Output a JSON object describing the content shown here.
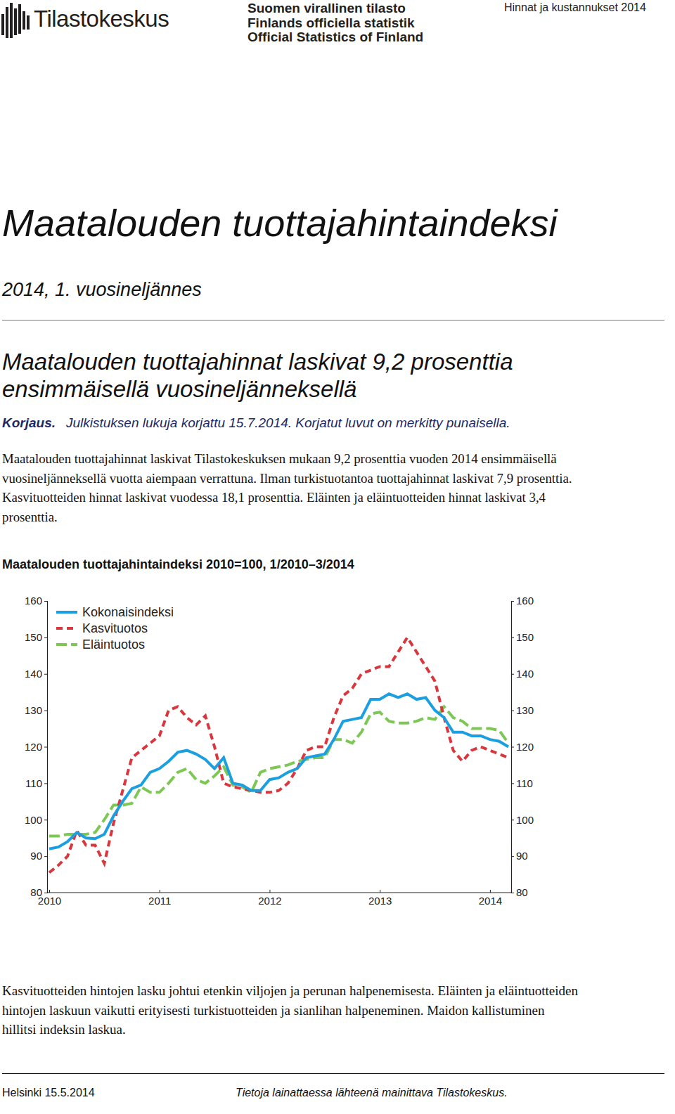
{
  "header": {
    "logo": "Tilastokeskus",
    "official_lines": [
      "Suomen virallinen tilasto",
      "Finlands officiella statistik",
      "Official Statistics of Finland"
    ],
    "top_right": "Hinnat ja kustannukset 2014"
  },
  "document": {
    "title": "Maatalouden tuottajahintaindeksi",
    "subtitle": "2014, 1. vuosineljännes",
    "headline_lines": [
      "Maatalouden tuottajahinnat laskivat 9,2 prosenttia",
      "ensimmäisellä vuosineljänneksellä"
    ],
    "correction_label": "Korjaus.",
    "correction_text": "Julkistuksen lukuja korjattu 15.7.2014. Korjatut luvut on merkitty punaisella.",
    "intro_lines": [
      "Maatalouden tuottajahinnat laskivat Tilastokeskuksen mukaan 9,2 prosenttia vuoden 2014 ensimmäisellä",
      "vuosineljänneksellä vuotta aiempaan verrattuna. Ilman turkistuotantoa tuottajahinnat laskivat 7,9 prosenttia.",
      "Kasvituotteiden hinnat laskivat vuodessa 18,1 prosenttia. Eläinten ja eläintuotteiden hinnat laskivat 3,4",
      "prosenttia."
    ],
    "body_lines": [
      "Kasvituotteiden hintojen lasku johtui etenkin viljojen ja perunan halpenemisesta. Eläinten ja eläintuotteiden",
      "hintojen laskuun vaikutti erityisesti turkistuotteiden ja sianlihan halpeneminen. Maidon kallistuminen",
      "hillitsi indeksin laskua."
    ],
    "footer_left": "Helsinki 15.5.2014",
    "footer_right": "Tietoja lainattaessa lähteenä mainittava Tilastokeskus."
  },
  "chart_data": {
    "type": "line",
    "title": "Maatalouden tuottajahintaindeksi 2010=100, 1/2010–3/2014",
    "categories": [
      "2010",
      null,
      null,
      null,
      null,
      null,
      null,
      null,
      null,
      null,
      null,
      null,
      "2011",
      null,
      null,
      null,
      null,
      null,
      null,
      null,
      null,
      null,
      null,
      null,
      "2012",
      null,
      null,
      null,
      null,
      null,
      null,
      null,
      null,
      null,
      null,
      null,
      "2013",
      null,
      null,
      null,
      null,
      null,
      null,
      null,
      null,
      null,
      null,
      null,
      "2014",
      null,
      null
    ],
    "series": [
      {
        "name": "Kokonaisindeksi",
        "color": "#1c9fe0",
        "line_style": "solid",
        "values": [
          92,
          92.5,
          94,
          96.5,
          95,
          94.8,
          96,
          101,
          105,
          108.5,
          109.5,
          113,
          114,
          116,
          118.5,
          119,
          118,
          116.5,
          114,
          117,
          110,
          109.5,
          108,
          108,
          111,
          111.5,
          113,
          114,
          117,
          117.5,
          118,
          122,
          127,
          127.5,
          128,
          133,
          133,
          134.5,
          133.5,
          134.5,
          133,
          133.5,
          130,
          128,
          124,
          124,
          123,
          123,
          122,
          121.5,
          120
        ]
      },
      {
        "name": "Kasvituotos",
        "color": "#d9363e",
        "line_style": "dashed",
        "values": [
          85.5,
          87.5,
          90,
          97,
          93,
          93,
          88,
          99,
          108,
          117,
          119,
          121,
          123,
          130,
          131,
          128,
          126,
          128.5,
          120,
          110,
          109,
          108.5,
          108,
          107.5,
          107.5,
          108,
          110,
          114,
          119,
          120,
          120,
          128,
          134,
          136,
          140,
          141,
          142,
          142,
          146,
          150,
          146,
          142,
          138,
          128,
          119,
          116,
          119,
          120,
          119,
          118,
          117
        ]
      },
      {
        "name": "Eläintuotos",
        "color": "#7dc855",
        "line_style": "dashed",
        "values": [
          95.5,
          95.5,
          96,
          96,
          96,
          96.5,
          100,
          104,
          104,
          104.5,
          109,
          107.5,
          107.5,
          110,
          113,
          114,
          111,
          110,
          112,
          114.5,
          109.5,
          109,
          107.5,
          113,
          114,
          114.5,
          115,
          116,
          116.5,
          117,
          117,
          122,
          122,
          121,
          124,
          129,
          129.5,
          127,
          126.5,
          126.5,
          127,
          128,
          127.5,
          131,
          128,
          127,
          125,
          125,
          125,
          124.5,
          121
        ]
      }
    ],
    "ylim": [
      80,
      160
    ],
    "yticks": [
      80,
      90,
      100,
      110,
      120,
      130,
      140,
      150,
      160
    ],
    "grid": false,
    "legend": "top-left"
  }
}
